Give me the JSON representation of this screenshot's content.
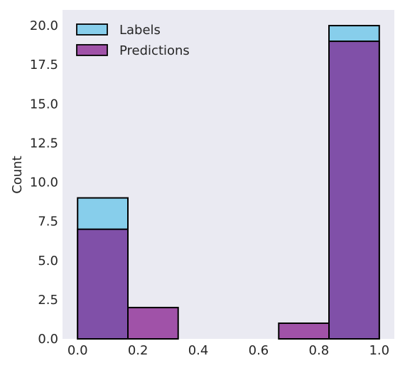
{
  "chart_data": {
    "type": "bar",
    "subtype": "histogram",
    "xlabel": "",
    "ylabel": "Count",
    "xlim": [
      -0.05,
      1.05
    ],
    "ylim": [
      0,
      21
    ],
    "xticks": [
      "0.0",
      "0.2",
      "0.4",
      "0.6",
      "0.8",
      "1.0"
    ],
    "yticks": [
      "0.0",
      "2.5",
      "5.0",
      "7.5",
      "10.0",
      "12.5",
      "15.0",
      "17.5",
      "20.0"
    ],
    "bin_edges": [
      0.0,
      0.1667,
      0.3333,
      0.5,
      0.6667,
      0.8333,
      1.0
    ],
    "series": [
      {
        "name": "Labels",
        "color": "#87ceeb",
        "values": [
          9,
          0,
          0,
          0,
          0,
          20
        ]
      },
      {
        "name": "Predictions",
        "color": "#a052a8",
        "values": [
          7,
          2,
          0,
          0,
          1,
          19
        ]
      }
    ],
    "overlap_color": "#8050a8",
    "background_color": "#eaeaf2",
    "legend_position": "top-left",
    "grid": false
  }
}
